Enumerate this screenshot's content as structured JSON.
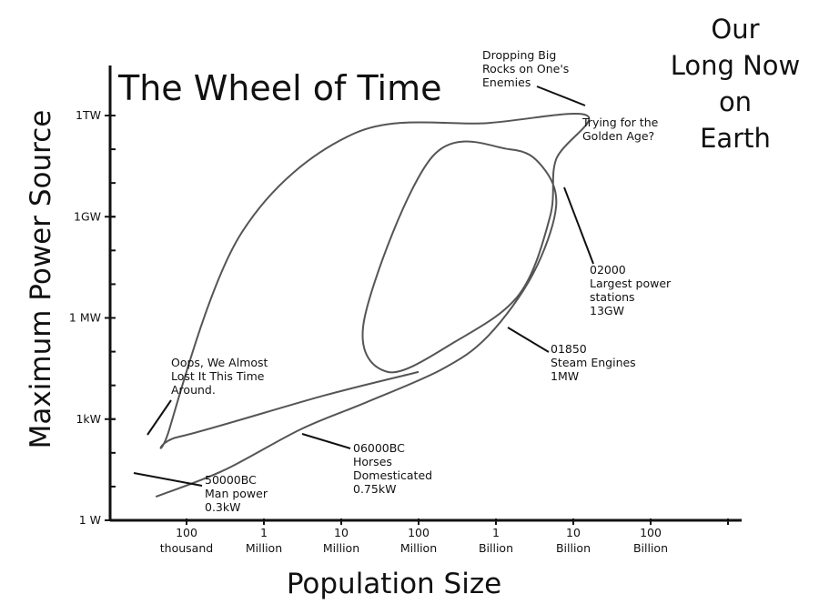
{
  "chart_data": {
    "type": "line",
    "title": "The Wheel of Time",
    "subtitle_lines": [
      "Our",
      "Long Now",
      "on",
      "Earth"
    ],
    "xlabel": "Population Size",
    "ylabel": "Maximum Power Source",
    "x_scale": "log",
    "y_scale": "log",
    "xlim": [
      10000,
      1000000000000
    ],
    "ylim": [
      1,
      1000000000000
    ],
    "grid": false,
    "x_ticks": [
      {
        "value": 100000,
        "label": [
          "100",
          "thousand"
        ]
      },
      {
        "value": 1000000,
        "label": [
          "1",
          "Million"
        ]
      },
      {
        "value": 10000000,
        "label": [
          "10",
          "Million"
        ]
      },
      {
        "value": 100000000,
        "label": [
          "100",
          "Million"
        ]
      },
      {
        "value": 1000000000,
        "label": [
          "1",
          "Billion"
        ]
      },
      {
        "value": 10000000000,
        "label": [
          "10",
          "Billion"
        ]
      },
      {
        "value": 100000000000,
        "label": [
          "100",
          "Billion"
        ]
      }
    ],
    "y_ticks": [
      {
        "value": 1,
        "label": "1 W"
      },
      {
        "value": 1000,
        "label": "1kW"
      },
      {
        "value": 1000000,
        "label": "1 MW"
      },
      {
        "value": 1000000000,
        "label": "1GW"
      },
      {
        "value": 1000000000000,
        "label": "1TW"
      }
    ],
    "series": [
      {
        "points": [
          [
            40000,
            5
          ],
          [
            300000,
            30
          ],
          [
            3000000,
            500
          ],
          [
            20000000,
            3000
          ],
          [
            200000000,
            30000
          ],
          [
            800000000,
            300000
          ],
          [
            3000000000,
            20000000
          ],
          [
            6000000000,
            2000000000
          ],
          [
            4000000000,
            30000000000
          ],
          [
            1500000000,
            100000000000
          ],
          [
            150000000,
            60000000000
          ],
          [
            20000000,
            1000000
          ],
          [
            40000000,
            25000
          ],
          [
            300000000,
            200000
          ],
          [
            2000000000,
            5000000
          ],
          [
            5000000000,
            1000000000
          ],
          [
            6000000000,
            50000000000
          ],
          [
            15000000000,
            1000000000000
          ],
          [
            800000000,
            600000000000
          ],
          [
            15000000,
            300000000000
          ],
          [
            500000,
            300000000
          ],
          [
            60000,
            500
          ],
          [
            80000,
            300
          ],
          [
            6000000,
            5000
          ],
          [
            100000000,
            25000
          ]
        ]
      }
    ],
    "annotations": [
      {
        "lines": [
          "50000BC",
          "Man power",
          "0.3kW"
        ],
        "x": 40000,
        "y": 300
      },
      {
        "lines": [
          "06000BC",
          "Horses",
          "Domesticated",
          "0.75kW"
        ],
        "x": 3000000,
        "y": 750
      },
      {
        "lines": [
          "01850",
          "Steam Engines",
          "1MW"
        ],
        "x": 700000000,
        "y": 1000000
      },
      {
        "lines": [
          "02000",
          "Largest power",
          "stations",
          "13GW"
        ],
        "x": 6000000000,
        "y": 13000000000
      },
      {
        "lines": [
          "Oops, We Almost",
          "Lost It This Time",
          "Around."
        ],
        "x": 70000,
        "y": 600
      },
      {
        "lines": [
          "Dropping Big",
          "Rocks on One's",
          "Enemies"
        ],
        "x": 15000000000,
        "y": 1000000000000
      },
      {
        "lines": [
          "Trying for the",
          "Golden Age?"
        ],
        "x": 6000000000,
        "y": 300000000000
      }
    ]
  }
}
